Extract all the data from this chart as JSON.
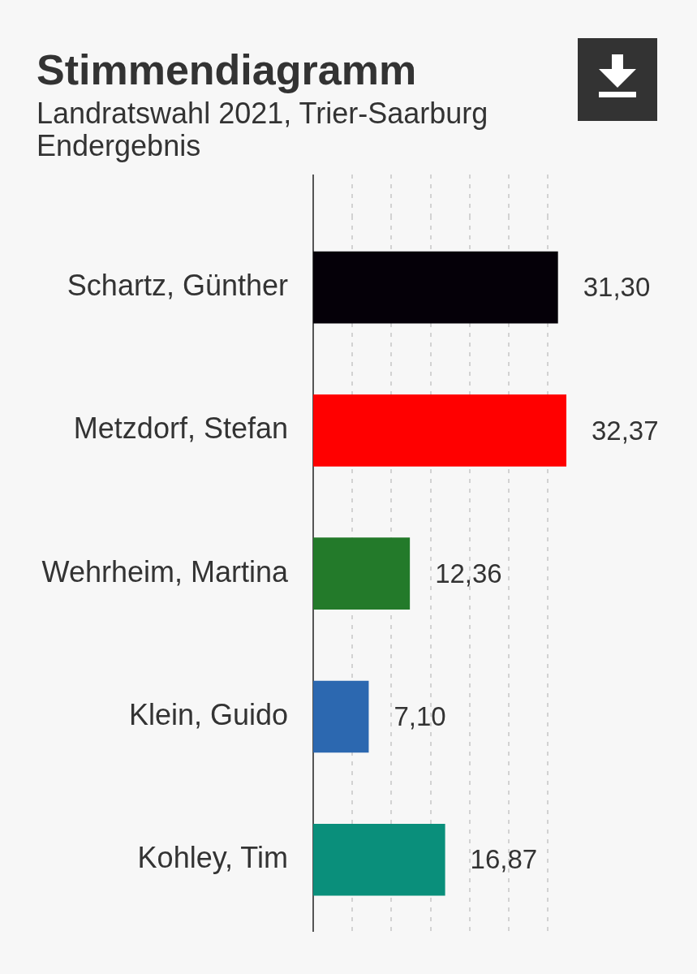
{
  "chart_data": {
    "type": "bar",
    "orientation": "horizontal",
    "title": "Stimmendiagramm",
    "subtitle": "Landratswahl 2021, Trier-Saarburg\nEndergebnis",
    "categories": [
      "Schartz, Günther",
      "Metzdorf, Stefan",
      "Wehrheim, Martina",
      "Klein, Guido",
      "Kohley, Tim"
    ],
    "values": [
      31.3,
      32.37,
      12.36,
      7.1,
      16.87
    ],
    "colors": [
      "#050008",
      "#ff0000",
      "#237a2a",
      "#2c68b0",
      "#0a8f7b"
    ],
    "value_labels": [
      "31,30",
      "32,37",
      "12,36",
      "7,10",
      "16,87"
    ],
    "xticks": [
      {
        "value": 5,
        "label": null
      },
      {
        "value": 10,
        "label": null
      },
      {
        "value": 15,
        "label": null
      },
      {
        "value": 20,
        "label": null
      },
      {
        "value": 25,
        "label": null
      },
      {
        "value": 30,
        "label": null
      }
    ],
    "grid": "x",
    "tick_labels": "y"
  }
}
